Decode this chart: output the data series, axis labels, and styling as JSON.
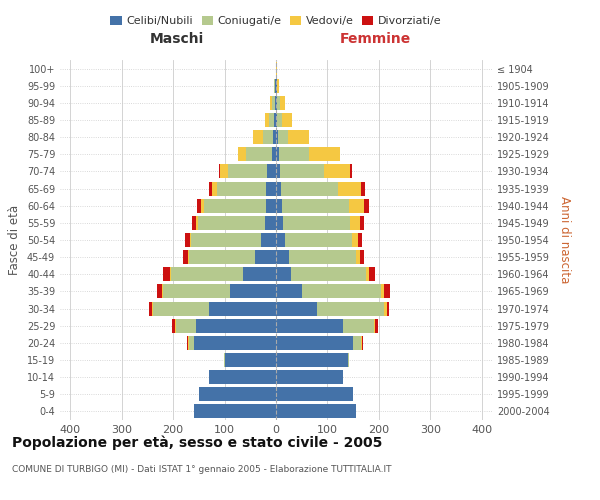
{
  "age_groups": [
    "0-4",
    "5-9",
    "10-14",
    "15-19",
    "20-24",
    "25-29",
    "30-34",
    "35-39",
    "40-44",
    "45-49",
    "50-54",
    "55-59",
    "60-64",
    "65-69",
    "70-74",
    "75-79",
    "80-84",
    "85-89",
    "90-94",
    "95-99",
    "100+"
  ],
  "birth_years": [
    "2000-2004",
    "1995-1999",
    "1990-1994",
    "1985-1989",
    "1980-1984",
    "1975-1979",
    "1970-1974",
    "1965-1969",
    "1960-1964",
    "1955-1959",
    "1950-1954",
    "1945-1949",
    "1940-1944",
    "1935-1939",
    "1930-1934",
    "1925-1929",
    "1920-1924",
    "1915-1919",
    "1910-1914",
    "1905-1909",
    "≤ 1904"
  ],
  "colors": {
    "celibe": "#4472a8",
    "coniugato": "#b5c98e",
    "vedovo": "#f5c842",
    "divorziato": "#cc1111"
  },
  "maschi": {
    "celibe": [
      160,
      150,
      130,
      100,
      160,
      155,
      130,
      90,
      65,
      40,
      30,
      22,
      20,
      20,
      18,
      8,
      5,
      3,
      2,
      1,
      0
    ],
    "coniugato": [
      0,
      0,
      0,
      2,
      10,
      40,
      110,
      130,
      140,
      130,
      135,
      130,
      120,
      95,
      75,
      50,
      20,
      10,
      5,
      2,
      0
    ],
    "vedovo": [
      0,
      0,
      0,
      0,
      2,
      2,
      2,
      2,
      2,
      2,
      3,
      3,
      5,
      10,
      15,
      15,
      20,
      8,
      4,
      1,
      0
    ],
    "divorziato": [
      0,
      0,
      0,
      0,
      2,
      5,
      5,
      10,
      12,
      8,
      8,
      8,
      8,
      5,
      2,
      0,
      0,
      0,
      0,
      0,
      0
    ]
  },
  "femmine": {
    "nubile": [
      155,
      150,
      130,
      140,
      150,
      130,
      80,
      50,
      30,
      25,
      18,
      14,
      12,
      10,
      8,
      5,
      4,
      2,
      2,
      1,
      0
    ],
    "coniugata": [
      0,
      0,
      0,
      2,
      15,
      60,
      130,
      155,
      145,
      130,
      130,
      130,
      130,
      110,
      85,
      60,
      20,
      10,
      5,
      1,
      0
    ],
    "vedova": [
      0,
      0,
      0,
      0,
      2,
      3,
      5,
      5,
      5,
      8,
      12,
      20,
      30,
      45,
      50,
      60,
      40,
      20,
      10,
      3,
      1
    ],
    "divorziata": [
      0,
      0,
      0,
      0,
      2,
      5,
      5,
      12,
      12,
      8,
      8,
      8,
      8,
      8,
      5,
      0,
      0,
      0,
      0,
      0,
      0
    ]
  },
  "xlim": 420,
  "title": "Popolazione per età, sesso e stato civile - 2005",
  "subtitle": "COMUNE DI TURBIGO (MI) - Dati ISTAT 1° gennaio 2005 - Elaborazione TUTTITALIA.IT",
  "ylabel_left": "Fasce di età",
  "ylabel_right": "Anni di nascita",
  "xlabel_left": "Maschi",
  "xlabel_right": "Femmine"
}
